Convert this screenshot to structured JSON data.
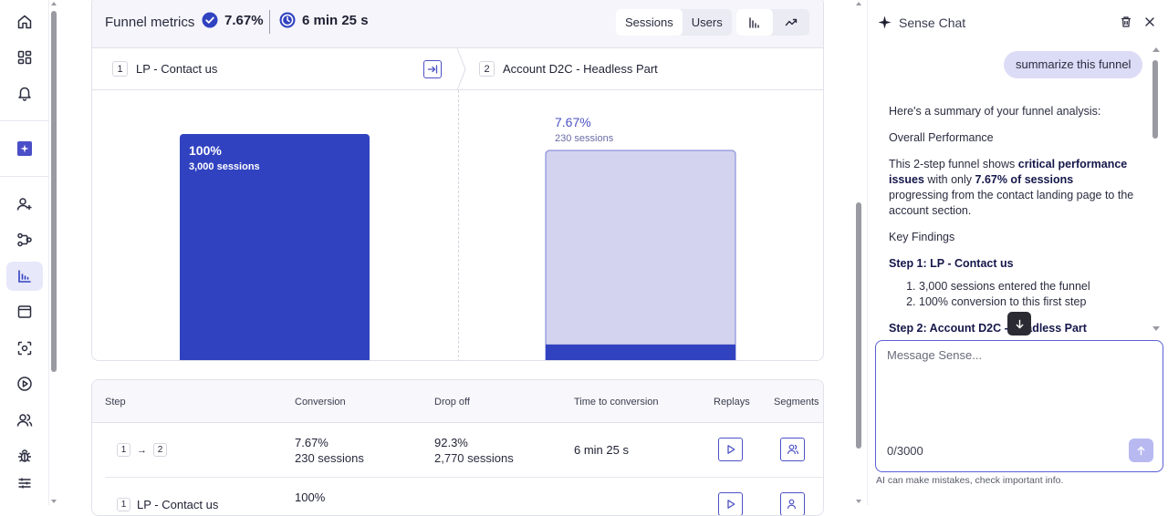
{
  "colors": {
    "accent": "#3142c0",
    "accent_light": "#d3d3ef",
    "icon": "#2a2c3f",
    "brand_tile": "#4a4ec8"
  },
  "rail": {
    "items": [
      {
        "name": "home-icon",
        "active": false
      },
      {
        "name": "dashboard-grid-icon",
        "active": false
      },
      {
        "name": "bell-icon",
        "active": false
      },
      {
        "name": "sense-ai-icon",
        "active": false
      },
      {
        "name": "add-user-icon",
        "active": false
      },
      {
        "name": "journeys-icon",
        "active": false
      },
      {
        "name": "funnel-chart-icon",
        "active": true
      },
      {
        "name": "browser-window-icon",
        "active": false
      },
      {
        "name": "heatmap-focus-icon",
        "active": false
      },
      {
        "name": "play-circle-icon",
        "active": false
      },
      {
        "name": "users-icon",
        "active": false
      },
      {
        "name": "bug-icon",
        "active": false
      },
      {
        "name": "sliders-icon",
        "active": false
      }
    ]
  },
  "metrics": {
    "label": "Funnel metrics",
    "conversion": "7.67%",
    "time": "6 min 25 s",
    "toggle": [
      "Sessions",
      "Users"
    ],
    "toggle_active": "Sessions"
  },
  "steps": [
    {
      "num": "1",
      "name": "LP - Contact us"
    },
    {
      "num": "2",
      "name": "Account D2C - Headless Part"
    }
  ],
  "chart_data": {
    "type": "bar",
    "categories": [
      "LP - Contact us",
      "Account D2C - Headless Part"
    ],
    "values_pct": [
      100,
      7.67
    ],
    "sessions": [
      3000,
      230
    ],
    "labels_pct": [
      "100%",
      "7.67%"
    ],
    "labels_sessions": [
      "3,000 sessions",
      "230 sessions"
    ],
    "ylim": [
      0,
      100
    ]
  },
  "table": {
    "headers": {
      "step": "Step",
      "conversion": "Conversion",
      "dropoff": "Drop off",
      "time": "Time to conversion",
      "replays": "Replays",
      "segments": "Segments"
    },
    "rows": [
      {
        "from": "1",
        "to": "2",
        "conversion": "7.67%",
        "conversion_sessions": "230 sessions",
        "dropoff": "92.3%",
        "dropoff_sessions": "2,770 sessions",
        "time": "6 min 25 s"
      },
      {
        "from": "1",
        "step_name": "LP - Contact us",
        "conversion": "100%"
      }
    ]
  },
  "chat": {
    "title": "Sense Chat",
    "user_message": "summarize this funnel",
    "response": {
      "intro": "Here's a summary of your funnel analysis:",
      "overall_heading": "Overall Performance",
      "overall_p1": "This 2-step funnel shows ",
      "overall_b1": "critical performance issues",
      "overall_p2": " with only ",
      "overall_b2": "7.67% of sessions",
      "overall_p3": " progressing from the contact landing page to the account section.",
      "findings_heading": "Key Findings",
      "step1_heading": "Step 1: LP - Contact us",
      "step1_items": [
        "3,000 sessions entered the funnel",
        "100% conversion to this first step"
      ],
      "step2_heading": "Step 2: Account D2C - Headless Part"
    },
    "placeholder": "Message Sense...",
    "char_count": "0/3000",
    "disclaimer": "AI can make mistakes, check important info."
  }
}
